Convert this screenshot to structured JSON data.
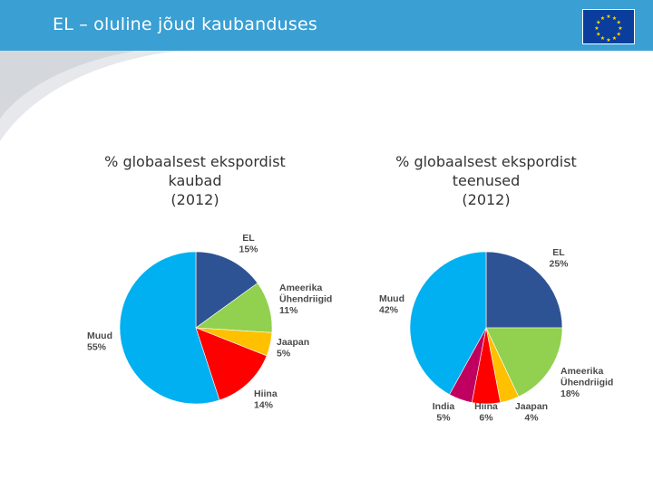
{
  "slide": {
    "title": "EL – oluline jõud kaubanduses",
    "flag_icon": "eu-flag-icon"
  },
  "chart_data": [
    {
      "type": "pie",
      "title_lines": [
        "% globaalsest ekspordist",
        "kaubad",
        "(2012)"
      ],
      "slices": [
        {
          "name_lines": [
            "EL"
          ],
          "value": 15,
          "label": "15%",
          "color": "#2e5394"
        },
        {
          "name_lines": [
            "Ameerika",
            "Ühendriigid"
          ],
          "value": 11,
          "label": "11%",
          "color": "#92d050"
        },
        {
          "name_lines": [
            "Jaapan"
          ],
          "value": 5,
          "label": "5%",
          "color": "#ffc000"
        },
        {
          "name_lines": [
            "Hiina"
          ],
          "value": 14,
          "label": "14%",
          "color": "#ff0000"
        },
        {
          "name_lines": [
            "Muud"
          ],
          "value": 55,
          "label": "55%",
          "color": "#00b0f0"
        }
      ]
    },
    {
      "type": "pie",
      "title_lines": [
        "% globaalsest ekspordist",
        "teenused",
        "(2012)"
      ],
      "slices": [
        {
          "name_lines": [
            "EL"
          ],
          "value": 25,
          "label": "25%",
          "color": "#2e5394"
        },
        {
          "name_lines": [
            "Ameerika",
            "Ühendriigid"
          ],
          "value": 18,
          "label": "18%",
          "color": "#92d050"
        },
        {
          "name_lines": [
            "Jaapan"
          ],
          "value": 4,
          "label": "4%",
          "color": "#ffc000"
        },
        {
          "name_lines": [
            "Hiina"
          ],
          "value": 6,
          "label": "6%",
          "color": "#ff0000"
        },
        {
          "name_lines": [
            "India"
          ],
          "value": 5,
          "label": "5%",
          "color": "#c00060"
        },
        {
          "name_lines": [
            "Muud"
          ],
          "value": 42,
          "label": "42%",
          "color": "#00b0f0"
        }
      ]
    }
  ]
}
